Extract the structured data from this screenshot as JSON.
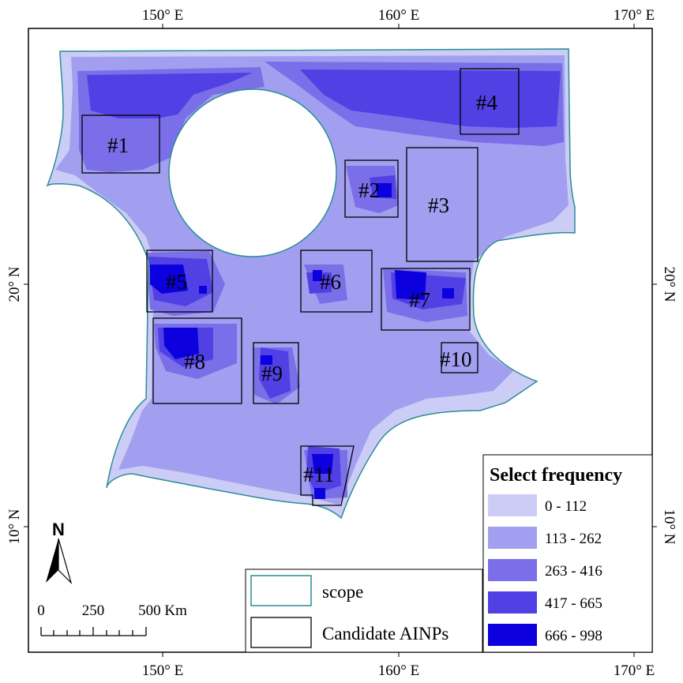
{
  "map": {
    "axes": {
      "top_labels": [
        "150° E",
        "160° E",
        "170° E"
      ],
      "bottom_labels": [
        "150° E",
        "160° E",
        "170° E"
      ],
      "left_labels": [
        "20° N",
        "10° N"
      ],
      "right_labels": [
        "20° N",
        "10° N"
      ]
    },
    "candidates": [
      "#1",
      "#2",
      "#3",
      "#4",
      "#5",
      "#6",
      "#7",
      "#8",
      "#9",
      "#10",
      "#11"
    ],
    "legend": {
      "title": "Select frequency",
      "classes": [
        {
          "label": "0 - 112",
          "color": "#cccdf6"
        },
        {
          "label": "113 - 262",
          "color": "#a29ff0"
        },
        {
          "label": "263 - 416",
          "color": "#7a6fe8"
        },
        {
          "label": "417 - 665",
          "color": "#5140e4"
        },
        {
          "label": "666 - 998",
          "color": "#0c00df"
        }
      ]
    },
    "legend2": {
      "items": [
        {
          "label": "scope",
          "color": "#2a8c96"
        },
        {
          "label": "Candidate AINPs",
          "color": "#000000"
        }
      ]
    },
    "scalebar": {
      "labels": [
        "0",
        "250",
        "500 Km"
      ]
    },
    "north_arrow": {
      "label": "N"
    }
  }
}
